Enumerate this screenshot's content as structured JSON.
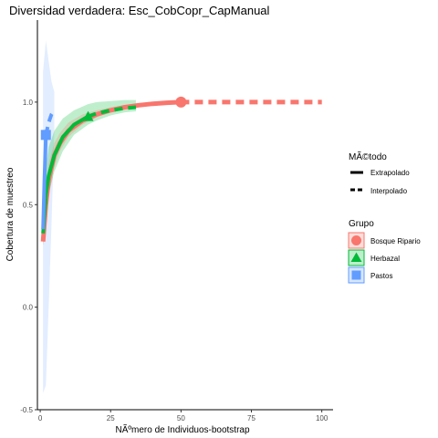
{
  "chart_data": {
    "type": "line",
    "title": "Diversidad verdadera: Esc_CobCopr_CapManual",
    "xlabel": "NÃºmero de Individuos-bootstrap",
    "ylabel": "Cobertura de muestreo",
    "xlim": [
      -1,
      104
    ],
    "ylim": [
      -0.5,
      1.4
    ],
    "x_ticks": [
      0,
      25,
      50,
      75,
      100
    ],
    "x_tick_labels": [
      "0",
      "25",
      "50",
      "75",
      "100"
    ],
    "y_ticks": [
      -0.5,
      0.0,
      0.5,
      1.0
    ],
    "y_tick_labels": [
      "-0.5",
      "0.0",
      "0.5",
      "1.0"
    ],
    "grid": false,
    "legend_placement": "right",
    "method_legend": {
      "title": "MÃ©todo",
      "items": [
        {
          "label": "Extrapolado",
          "dash": "solid"
        },
        {
          "label": "Interpolado",
          "dash": "dashed"
        }
      ]
    },
    "group_legend": {
      "title": "Grupo",
      "items": [
        {
          "label": "Bosque Ripario",
          "color": "#F8766D",
          "shape": "circle"
        },
        {
          "label": "Herbazal",
          "color": "#00BA38",
          "shape": "triangle"
        },
        {
          "label": "Pastos",
          "color": "#619CFF",
          "shape": "square"
        }
      ]
    },
    "series": [
      {
        "name": "Bosque Ripario",
        "color": "#F8766D",
        "observed": {
          "x": 50,
          "y": 1.0
        },
        "interpolated": {
          "x": [
            1,
            2,
            3,
            5,
            7,
            10,
            15,
            20,
            25,
            30,
            35,
            40,
            45,
            50
          ],
          "y": [
            0.32,
            0.5,
            0.62,
            0.74,
            0.8,
            0.86,
            0.91,
            0.94,
            0.96,
            0.975,
            0.985,
            0.992,
            0.997,
            1.0
          ]
        },
        "extrapolated": {
          "x": [
            50,
            60,
            70,
            80,
            90,
            100
          ],
          "y": [
            1.0,
            1.0,
            1.0,
            1.0,
            1.0,
            1.0
          ]
        },
        "ci_upper": [
          0.4,
          0.6,
          0.7,
          0.8,
          0.85,
          0.9,
          0.94,
          0.96,
          0.975,
          0.985,
          0.99,
          0.995,
          0.999,
          1.0
        ],
        "ci_lower": [
          0.3,
          0.4,
          0.54,
          0.68,
          0.76,
          0.83,
          0.89,
          0.925,
          0.95,
          0.967,
          0.98,
          0.99,
          0.995,
          1.0
        ]
      },
      {
        "name": "Herbazal",
        "color": "#00BA38",
        "observed": {
          "x": 17,
          "y": 0.93
        },
        "interpolated": {
          "x": [
            1,
            2,
            3,
            5,
            8,
            12,
            17
          ],
          "y": [
            0.36,
            0.55,
            0.64,
            0.74,
            0.83,
            0.89,
            0.93
          ]
        },
        "extrapolated": {
          "x": [
            17,
            20,
            25,
            30,
            34
          ],
          "y": [
            0.93,
            0.945,
            0.96,
            0.97,
            0.975
          ]
        },
        "ci_x": [
          1,
          2,
          3,
          5,
          8,
          12,
          17,
          20,
          25,
          30,
          34
        ],
        "ci_upper": [
          0.45,
          0.68,
          0.78,
          0.86,
          0.92,
          0.96,
          0.99,
          1.0,
          1.005,
          1.01,
          1.01
        ],
        "ci_lower": [
          0.3,
          0.45,
          0.55,
          0.66,
          0.76,
          0.84,
          0.89,
          0.91,
          0.935,
          0.95,
          0.955
        ]
      },
      {
        "name": "Pastos",
        "color": "#619CFF",
        "observed": {
          "x": 2,
          "y": 0.84
        },
        "interpolated": {
          "x": [
            1,
            1.5,
            2
          ],
          "y": [
            0.38,
            0.62,
            0.84
          ]
        },
        "extrapolated": {
          "x": [
            2,
            3,
            4,
            5
          ],
          "y": [
            0.84,
            0.9,
            0.94,
            0.96
          ]
        },
        "ci_x": [
          1,
          2,
          3,
          4,
          5
        ],
        "ci_upper": [
          1.15,
          1.3,
          1.2,
          1.1,
          1.05
        ],
        "ci_lower": [
          -0.42,
          -0.38,
          0.0,
          0.4,
          0.85
        ]
      }
    ]
  }
}
